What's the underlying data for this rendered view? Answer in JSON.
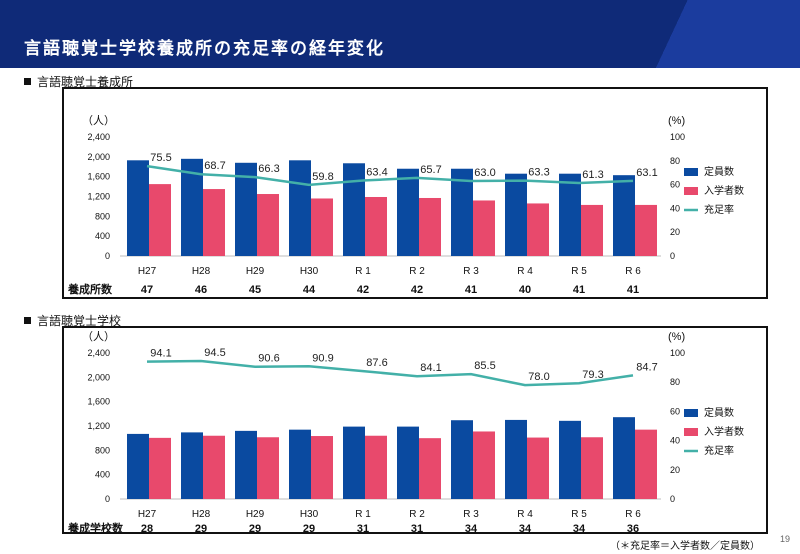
{
  "header": {
    "title": "言語聴覚士学校養成所の充足率の経年変化",
    "bg_color": "#0f2a78",
    "stripe_color": "#1b3c9e"
  },
  "footnote": "（＊充足率＝入学者数／定員数）",
  "page_number": "19",
  "chart_data": [
    {
      "type": "bar",
      "section_label": "言語聴覚士養成所",
      "y_left_label": "（人）",
      "y_right_label": "(%)",
      "y_left_ticks": [
        "2,400",
        "2,000",
        "1,600",
        "1,200",
        "800",
        "400",
        "0"
      ],
      "y_right_ticks": [
        "100",
        "80",
        "60",
        "40",
        "20",
        "0"
      ],
      "ylim": [
        0,
        2400
      ],
      "y2lim": [
        0,
        100
      ],
      "categories": [
        "H27",
        "H28",
        "H29",
        "H30",
        "R 1",
        "R 2",
        "R 3",
        "R 4",
        "R 5",
        "R 6"
      ],
      "series": [
        {
          "name": "定員数",
          "kind": "bar",
          "color": "#0a4aa0",
          "values": [
            1930,
            1960,
            1880,
            1930,
            1870,
            1760,
            1760,
            1660,
            1660,
            1630
          ]
        },
        {
          "name": "入学者数",
          "kind": "bar",
          "color": "#e8496c",
          "values": [
            1450,
            1350,
            1250,
            1160,
            1190,
            1170,
            1120,
            1060,
            1030,
            1030
          ]
        },
        {
          "name": "充足率",
          "kind": "line",
          "color": "#43b0a8",
          "values": [
            75.5,
            68.7,
            66.3,
            59.8,
            63.4,
            65.7,
            63.0,
            63.3,
            61.3,
            63.1
          ]
        }
      ],
      "data_labels": [
        "75.5",
        "68.7",
        "66.3",
        "59.8",
        "63.4",
        "65.7",
        "63.0",
        "63.3",
        "61.3",
        "63.1"
      ],
      "legend": [
        "定員数",
        "入学者数",
        "充足率"
      ],
      "count_row_label": "養成所数",
      "count_values": [
        "47",
        "46",
        "45",
        "44",
        "42",
        "42",
        "41",
        "40",
        "41",
        "41"
      ]
    },
    {
      "type": "bar",
      "section_label": "言語聴覚士学校",
      "y_left_label": "（人）",
      "y_right_label": "(%)",
      "y_left_ticks": [
        "2,400",
        "2,000",
        "1,600",
        "1,200",
        "800",
        "400",
        "0"
      ],
      "y_right_ticks": [
        "100",
        "80",
        "60",
        "40",
        "20",
        "0"
      ],
      "ylim": [
        0,
        2400
      ],
      "y2lim": [
        0,
        100
      ],
      "categories": [
        "H27",
        "H28",
        "H29",
        "H30",
        "R 1",
        "R 2",
        "R 3",
        "R 4",
        "R 5",
        "R 6"
      ],
      "series": [
        {
          "name": "定員数",
          "kind": "bar",
          "color": "#0a4aa0",
          "values": [
            1070,
            1095,
            1120,
            1140,
            1190,
            1190,
            1295,
            1300,
            1285,
            1345
          ]
        },
        {
          "name": "入学者数",
          "kind": "bar",
          "color": "#e8496c",
          "values": [
            1005,
            1040,
            1015,
            1035,
            1040,
            1000,
            1110,
            1010,
            1015,
            1140
          ]
        },
        {
          "name": "充足率",
          "kind": "line",
          "color": "#43b0a8",
          "values": [
            94.1,
            94.5,
            90.6,
            90.9,
            87.6,
            84.1,
            85.5,
            78.0,
            79.3,
            84.7
          ]
        }
      ],
      "data_labels": [
        "94.1",
        "94.5",
        "90.6",
        "90.9",
        "87.6",
        "84.1",
        "85.5",
        "78.0",
        "79.3",
        "84.7"
      ],
      "legend": [
        "定員数",
        "入学者数",
        "充足率"
      ],
      "count_row_label": "養成学校数",
      "count_values": [
        "28",
        "29",
        "29",
        "29",
        "31",
        "31",
        "34",
        "34",
        "34",
        "36"
      ]
    }
  ]
}
